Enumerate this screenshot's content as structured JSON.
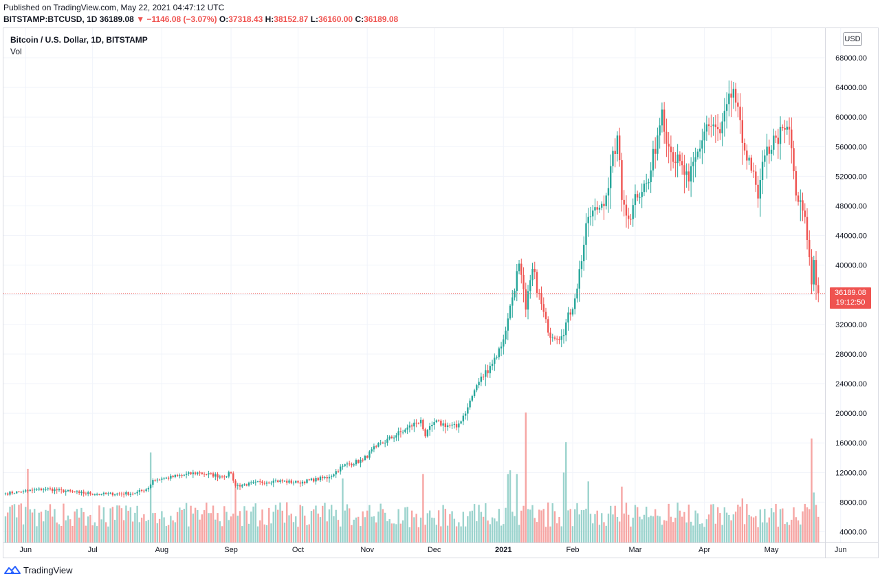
{
  "header": {
    "published": "Published on TradingView.com, May 22, 2021 04:47:12 UTC",
    "symbol": "BITSTAMP:BTCUSD, 1D",
    "last": "36189.08",
    "change": "−1146.08 (−3.07%)",
    "o_label": "O:",
    "o_value": "37318.43",
    "h_label": "H:",
    "h_value": "38152.87",
    "l_label": "L:",
    "l_value": "36160.00",
    "c_label": "C:",
    "c_value": "36189.08"
  },
  "legend": {
    "title": "Bitcoin / U.S. Dollar, 1D, BITSTAMP",
    "volume_label": "Vol"
  },
  "currency_button": "USD",
  "price_tag": {
    "price": "36189.08",
    "countdown": "19:12:50"
  },
  "footer": {
    "brand": "TradingView"
  },
  "colors": {
    "up": "#26a69a",
    "down": "#ef5350",
    "vol_up": "#9bd3cd",
    "vol_down": "#f6a5a3",
    "grid": "#f0f3fa",
    "axis_text": "#131722"
  },
  "icons": {
    "down_arrow": "triangle-down-icon",
    "logo": "tradingview-logo-icon"
  },
  "chart_data": {
    "type": "candlestick",
    "y_axis_ticks": [
      "68000.00",
      "64000.00",
      "60000.00",
      "56000.00",
      "52000.00",
      "48000.00",
      "44000.00",
      "40000.00",
      "36000.00",
      "32000.00",
      "28000.00",
      "24000.00",
      "20000.00",
      "16000.00",
      "12000.00",
      "8000.00",
      "4000.00"
    ],
    "x_axis_labels": [
      "Jun",
      "Jul",
      "Aug",
      "Sep",
      "Oct",
      "Nov",
      "Dec",
      "2021",
      "Feb",
      "Mar",
      "Apr",
      "May",
      "Jun"
    ],
    "ylim": [
      2000,
      70000
    ],
    "last_price": 36189.08,
    "close_anchors": [
      [
        "2020-05-23",
        9180
      ],
      [
        "2020-05-31",
        9450
      ],
      [
        "2020-06-02",
        9520
      ],
      [
        "2020-06-10",
        9800
      ],
      [
        "2020-06-25",
        9250
      ],
      [
        "2020-07-05",
        9080
      ],
      [
        "2020-07-20",
        9200
      ],
      [
        "2020-07-26",
        9900
      ],
      [
        "2020-07-28",
        11000
      ],
      [
        "2020-08-02",
        11200
      ],
      [
        "2020-08-17",
        12000
      ],
      [
        "2020-08-28",
        11450
      ],
      [
        "2020-09-01",
        11900
      ],
      [
        "2020-09-03",
        10200
      ],
      [
        "2020-09-20",
        10900
      ],
      [
        "2020-10-01",
        10650
      ],
      [
        "2020-10-15",
        11400
      ],
      [
        "2020-10-21",
        12900
      ],
      [
        "2020-10-30",
        13700
      ],
      [
        "2020-11-05",
        15500
      ],
      [
        "2020-11-18",
        17800
      ],
      [
        "2020-11-25",
        19100
      ],
      [
        "2020-11-27",
        16900
      ],
      [
        "2020-12-01",
        18800
      ],
      [
        "2020-12-11",
        18100
      ],
      [
        "2020-12-16",
        20800
      ],
      [
        "2020-12-20",
        23800
      ],
      [
        "2020-12-26",
        26400
      ],
      [
        "2020-12-31",
        29000
      ],
      [
        "2021-01-03",
        32800
      ],
      [
        "2021-01-08",
        40200
      ],
      [
        "2021-01-11",
        34000
      ],
      [
        "2021-01-14",
        39500
      ],
      [
        "2021-01-21",
        30900
      ],
      [
        "2021-01-27",
        30400
      ],
      [
        "2021-02-02",
        35500
      ],
      [
        "2021-02-08",
        46500
      ],
      [
        "2021-02-12",
        47500
      ],
      [
        "2021-02-16",
        49400
      ],
      [
        "2021-02-21",
        57500
      ],
      [
        "2021-02-23",
        48800
      ],
      [
        "2021-02-27",
        46200
      ],
      [
        "2021-03-01",
        49600
      ],
      [
        "2021-03-07",
        51200
      ],
      [
        "2021-03-13",
        61000
      ],
      [
        "2021-03-16",
        56000
      ],
      [
        "2021-03-25",
        51300
      ],
      [
        "2021-04-02",
        59000
      ],
      [
        "2021-04-08",
        57800
      ],
      [
        "2021-04-14",
        63800
      ],
      [
        "2021-04-18",
        56500
      ],
      [
        "2021-04-21",
        54500
      ],
      [
        "2021-04-25",
        49000
      ],
      [
        "2021-04-28",
        54800
      ],
      [
        "2021-05-03",
        57200
      ],
      [
        "2021-05-09",
        58300
      ],
      [
        "2021-05-10",
        55800
      ],
      [
        "2021-05-12",
        49400
      ],
      [
        "2021-05-16",
        46500
      ],
      [
        "2021-05-17",
        43400
      ],
      [
        "2021-05-19",
        37400
      ],
      [
        "2021-05-20",
        40700
      ],
      [
        "2021-05-21",
        37300
      ],
      [
        "2021-05-22",
        36189
      ]
    ],
    "volume_spikes": [
      [
        "2020-06-02",
        12500
      ],
      [
        "2020-07-27",
        14700
      ],
      [
        "2020-09-03",
        10200
      ],
      [
        "2020-10-21",
        11200
      ],
      [
        "2020-11-26",
        11800
      ],
      [
        "2021-01-03",
        11800
      ],
      [
        "2021-01-04",
        12300
      ],
      [
        "2021-01-07",
        11800
      ],
      [
        "2021-01-11",
        20100
      ],
      [
        "2021-01-28",
        12000
      ],
      [
        "2021-01-29",
        16100
      ],
      [
        "2021-02-08",
        10800
      ],
      [
        "2021-02-23",
        10100
      ],
      [
        "2021-04-18",
        8500
      ],
      [
        "2021-05-19",
        16600
      ],
      [
        "2021-05-20",
        9300
      ]
    ]
  }
}
